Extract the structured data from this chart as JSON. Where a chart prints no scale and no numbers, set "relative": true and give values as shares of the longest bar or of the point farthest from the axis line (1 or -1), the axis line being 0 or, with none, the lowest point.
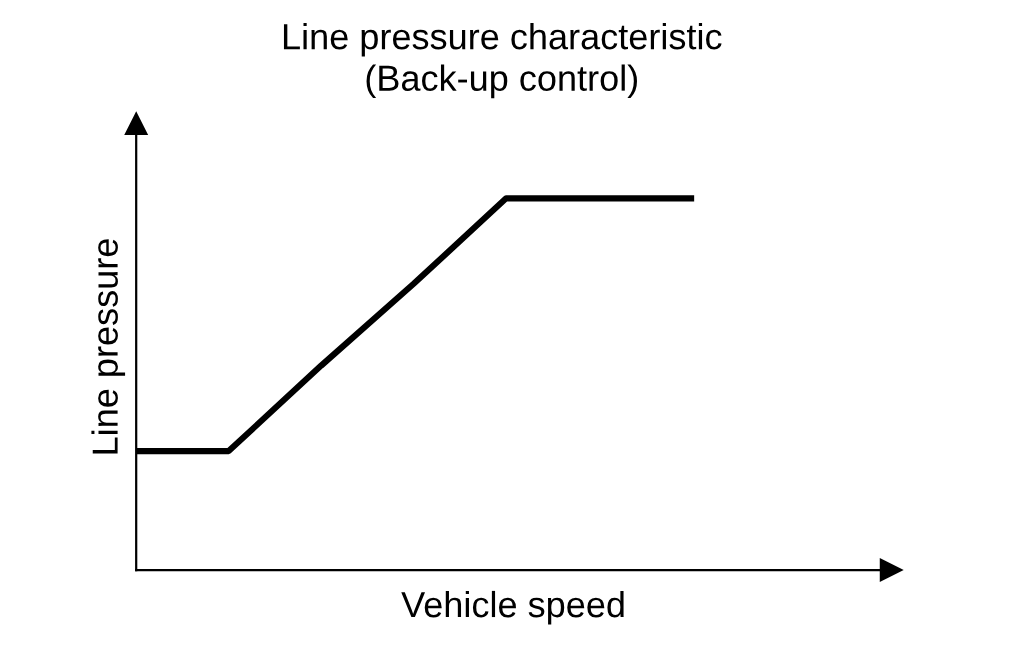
{
  "chart_data": {
    "type": "line",
    "title": "Line pressure characteristic\n(Back-up control)",
    "xlabel": "Vehicle speed",
    "ylabel": "Line pressure",
    "relative": true,
    "categories": [
      null,
      null,
      null,
      null,
      null,
      null,
      null
    ],
    "series": [
      {
        "color": "#000000",
        "values": [
          0.32,
          0.32,
          0.55,
          0.77,
          1,
          1,
          1
        ]
      }
    ],
    "grid": false,
    "legend": false,
    "marker": "none",
    "line_style": "solid"
  }
}
